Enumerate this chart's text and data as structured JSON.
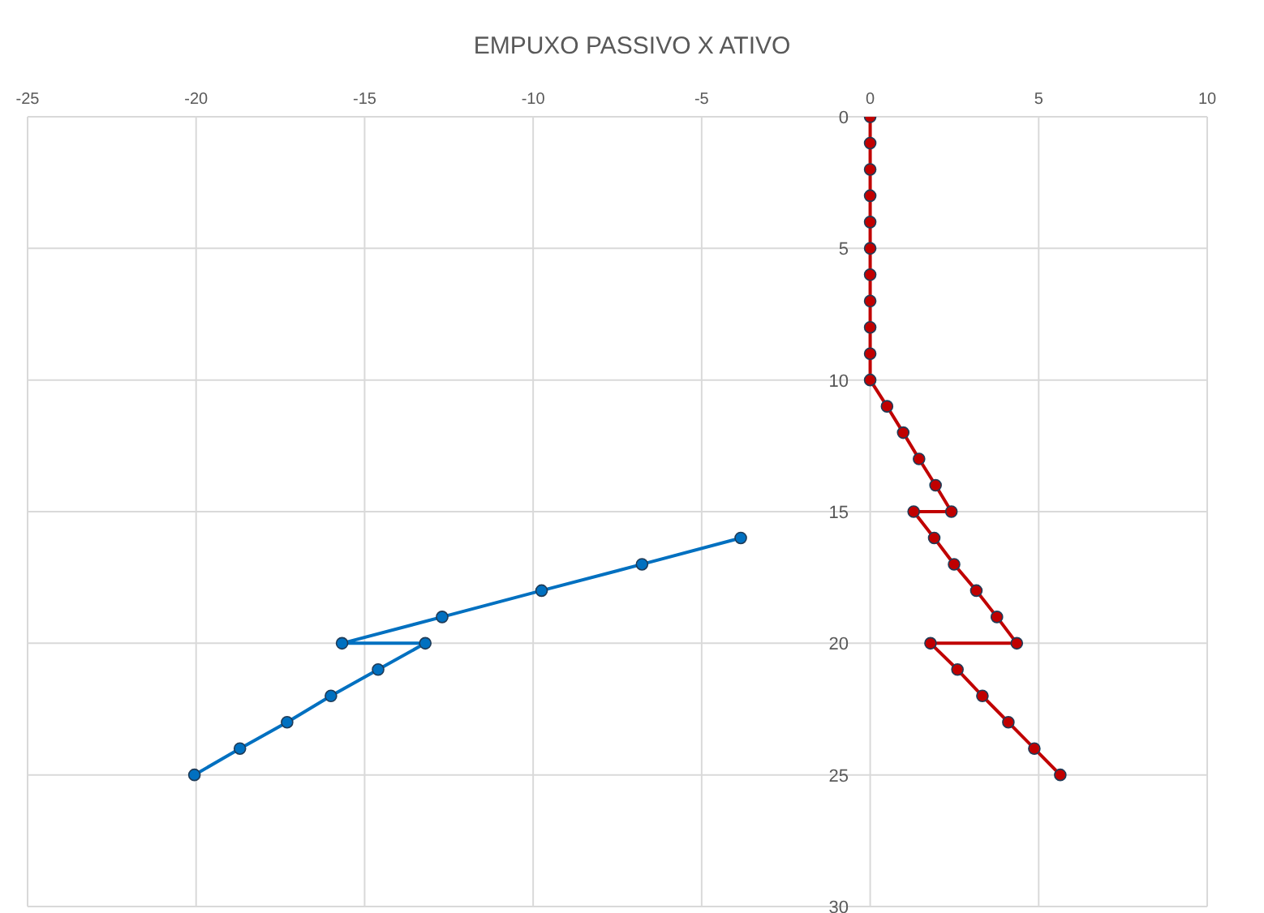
{
  "chart_data": {
    "type": "scatter",
    "title": "EMPUXO PASSIVO X ATIVO",
    "xlim": [
      -25,
      10
    ],
    "xticks": [
      -25,
      -20,
      -15,
      -10,
      -5,
      0,
      5,
      10
    ],
    "ylim": [
      30,
      0
    ],
    "yticks": [
      0,
      5,
      10,
      15,
      20,
      25,
      30
    ],
    "grid": true,
    "marker": "circle",
    "line_style": "solid",
    "series": [
      {
        "type": "line",
        "color": "#0070c0",
        "x": [
          -3.84,
          -6.77,
          -9.75,
          -12.7,
          -15.67,
          -13.2,
          -14.6,
          -16.0,
          -17.3,
          -18.7,
          -20.05
        ],
        "values": [
          16,
          17,
          18,
          19,
          20,
          20,
          21,
          22,
          23,
          24,
          25
        ]
      },
      {
        "type": "line",
        "color": "#c00000",
        "x": [
          0,
          0,
          0,
          0,
          0,
          0,
          0,
          0,
          0,
          0,
          0,
          0.5,
          0.98,
          1.45,
          1.94,
          2.41,
          1.29,
          1.9,
          2.49,
          3.15,
          3.76,
          4.35,
          1.79,
          2.59,
          3.33,
          4.1,
          4.87,
          5.64
        ],
        "values": [
          0,
          1,
          2,
          3,
          4,
          5,
          6,
          7,
          8,
          9,
          10,
          11,
          12,
          13,
          14,
          15,
          15,
          16,
          17,
          18,
          19,
          20,
          20,
          21,
          22,
          23,
          24,
          25
        ]
      }
    ]
  }
}
